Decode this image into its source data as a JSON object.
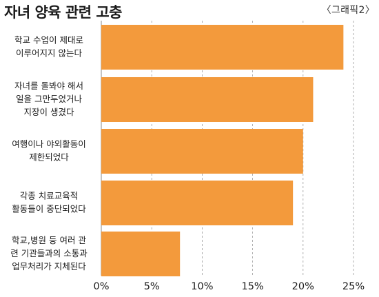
{
  "chart_data": {
    "type": "bar",
    "orientation": "horizontal",
    "title": "자녀 양육 관련 고충",
    "tag": "〈그래픽2〉",
    "categories": [
      [
        "학교 수업이 제대로",
        "이루어지지 않는다"
      ],
      [
        "자녀를 돌봐야 해서",
        "일을 그만두었거나",
        "지장이 생겼다"
      ],
      [
        "여행이나 야외활동이",
        "제한되었다"
      ],
      [
        "각종 치료교육적",
        "활동들이 중단되었다"
      ],
      [
        "학교,병원 등 여러 관",
        "련 기관들과의 소통과",
        "업무처리가 지체된다"
      ]
    ],
    "values": [
      24,
      21,
      20,
      19,
      7.8
    ],
    "xlim": [
      0,
      25
    ],
    "xticks": [
      0,
      5,
      10,
      15,
      20,
      25
    ],
    "xtick_labels": [
      "0%",
      "5%",
      "10%",
      "15%",
      "20%",
      "25%"
    ],
    "grid": "dashed vertical",
    "bar_color": "#f39a3c"
  }
}
